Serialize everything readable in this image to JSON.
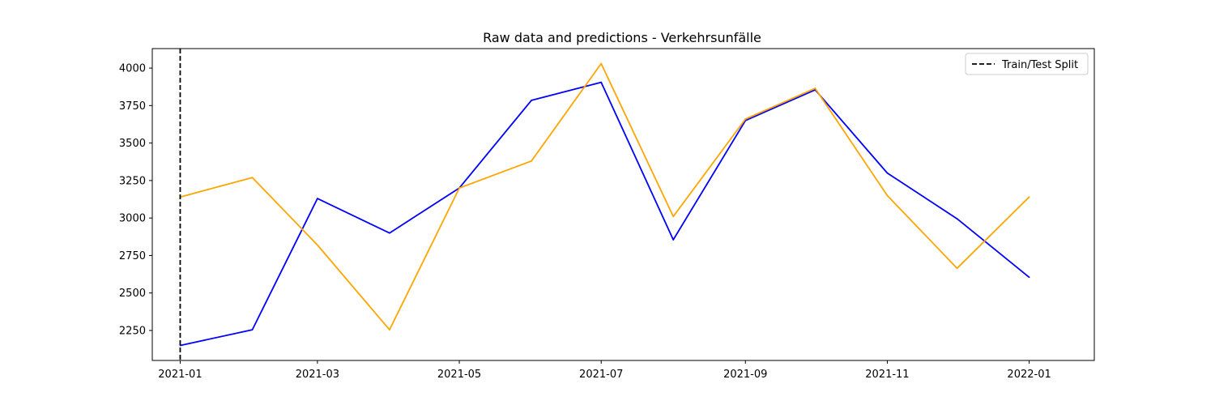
{
  "chart_data": {
    "type": "line",
    "title": "Raw data and predictions - Verkehrsunfälle",
    "xlabel": "",
    "ylabel": "",
    "x": [
      "2021-01-01",
      "2021-02-01",
      "2021-03-01",
      "2021-04-01",
      "2021-05-01",
      "2021-06-01",
      "2021-07-01",
      "2021-08-01",
      "2021-09-01",
      "2021-10-01",
      "2021-11-01",
      "2021-12-01",
      "2022-01-01"
    ],
    "xlim": [
      "2020-12-20",
      "2022-01-29"
    ],
    "ylim": [
      2050,
      4130
    ],
    "x_ticks": [
      {
        "date": "2021-01-01",
        "label": "2021-01"
      },
      {
        "date": "2021-03-01",
        "label": "2021-03"
      },
      {
        "date": "2021-05-01",
        "label": "2021-05"
      },
      {
        "date": "2021-07-01",
        "label": "2021-07"
      },
      {
        "date": "2021-09-01",
        "label": "2021-09"
      },
      {
        "date": "2021-11-01",
        "label": "2021-11"
      },
      {
        "date": "2022-01-01",
        "label": "2022-01"
      }
    ],
    "y_ticks": [
      2250,
      2500,
      2750,
      3000,
      3250,
      3500,
      3750,
      4000
    ],
    "series": [
      {
        "color": "#0000ff",
        "values": [
          2150,
          2255,
          3130,
          2900,
          3200,
          3785,
          3905,
          2855,
          3650,
          3855,
          3300,
          2995,
          2605
        ]
      },
      {
        "color": "#ffa500",
        "values": [
          3140,
          3270,
          2820,
          2255,
          3200,
          3380,
          4030,
          3010,
          3660,
          3865,
          3150,
          2665,
          3140
        ]
      }
    ],
    "vline": {
      "date": "2021-01-01",
      "label": "Train/Test Split",
      "style": "dashed",
      "color": "#000000"
    },
    "grid": false,
    "legend": {
      "position": "top-right",
      "entries": [
        "Train/Test Split"
      ]
    }
  }
}
